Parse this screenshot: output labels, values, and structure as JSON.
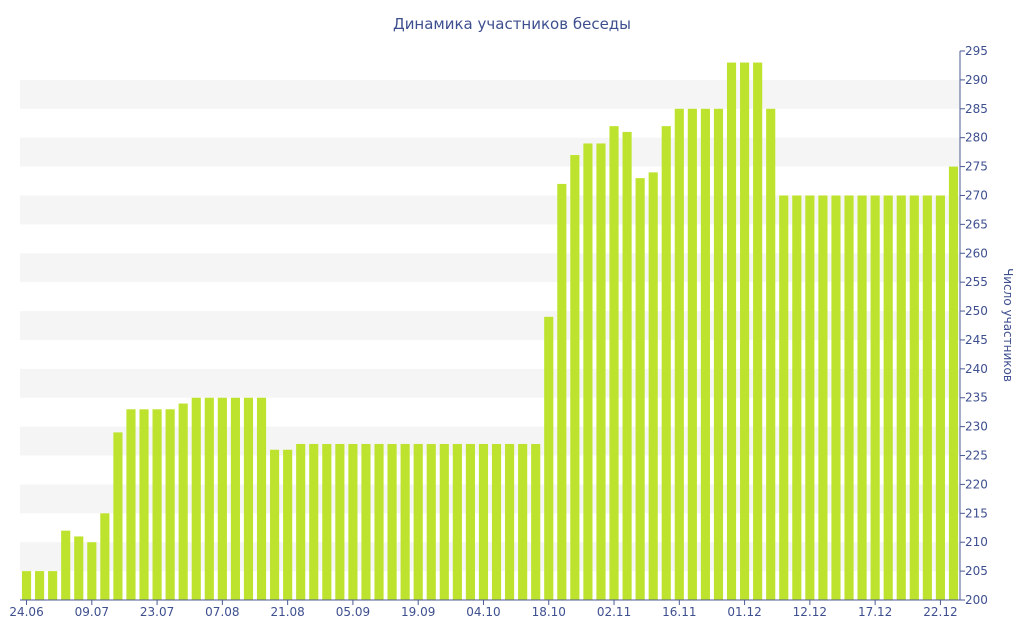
{
  "chart_data": {
    "type": "bar",
    "title": "Динамика участников беседы",
    "xlabel": "",
    "ylabel": "Число участников",
    "ylim": [
      200,
      295
    ],
    "y_ticks": [
      200,
      205,
      210,
      215,
      220,
      225,
      230,
      235,
      240,
      245,
      250,
      255,
      260,
      265,
      270,
      275,
      280,
      285,
      290,
      295
    ],
    "x_tick_labels": [
      "24.06",
      "09.07",
      "23.07",
      "07.08",
      "21.08",
      "05.09",
      "19.09",
      "04.10",
      "18.10",
      "02.11",
      "16.11",
      "01.12",
      "12.12",
      "17.12",
      "22.12"
    ],
    "x_tick_positions": [
      0,
      5,
      10,
      15,
      20,
      25,
      30,
      35,
      40,
      45,
      50,
      55,
      60,
      65,
      70
    ],
    "bar_color": "#bee32e",
    "grid": "horizontal alternating bands",
    "y_axis_side": "right",
    "values": [
      205,
      205,
      205,
      212,
      211,
      210,
      215,
      229,
      233,
      233,
      233,
      233,
      234,
      235,
      235,
      235,
      235,
      235,
      235,
      226,
      226,
      227,
      227,
      227,
      227,
      227,
      227,
      227,
      227,
      227,
      227,
      227,
      227,
      227,
      227,
      227,
      227,
      227,
      227,
      227,
      249,
      272,
      277,
      279,
      279,
      282,
      281,
      273,
      274,
      282,
      285,
      285,
      285,
      285,
      293,
      293,
      293,
      285,
      270,
      270,
      270,
      270,
      270,
      270,
      270,
      270,
      270,
      270,
      270,
      270,
      270,
      275
    ]
  }
}
